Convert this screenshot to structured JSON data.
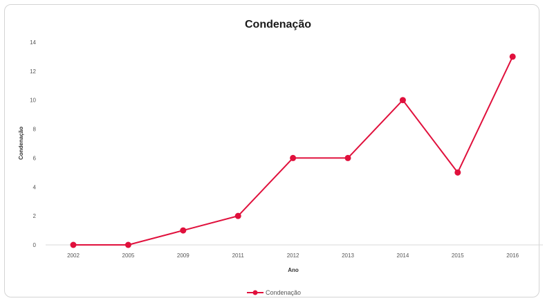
{
  "chart_data": {
    "type": "line",
    "title": "Condenação",
    "xlabel": "Ano",
    "ylabel": "Condenação",
    "categories": [
      "2002",
      "2005",
      "2009",
      "2011",
      "2012",
      "2013",
      "2014",
      "2015",
      "2016"
    ],
    "series": [
      {
        "name": "Condenação",
        "values": [
          0,
          0,
          1,
          2,
          6,
          6,
          10,
          5,
          13
        ],
        "color": "#e0103c"
      }
    ],
    "yticks": [
      "0",
      "2",
      "4",
      "6",
      "8",
      "10",
      "12",
      "14"
    ],
    "ylim": [
      0,
      14
    ],
    "grid": false,
    "legend": "bottom"
  }
}
